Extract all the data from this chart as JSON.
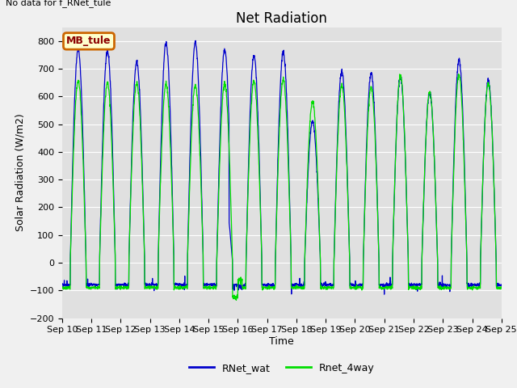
{
  "title": "Net Radiation",
  "ylabel": "Solar Radiation (W/m2)",
  "xlabel": "Time",
  "no_data_text": "No data for f_RNet_tule",
  "legend_box_text": "MB_tule",
  "legend_entries": [
    "RNet_wat",
    "Rnet_4way"
  ],
  "line_colors": [
    "#0000cc",
    "#00dd00"
  ],
  "ylim": [
    -200,
    850
  ],
  "yticks": [
    -200,
    -100,
    0,
    100,
    200,
    300,
    400,
    500,
    600,
    700,
    800
  ],
  "n_days": 15,
  "background_color": "#f0f0f0",
  "plot_bg_color": "#e0e0e0",
  "title_fontsize": 12,
  "axis_label_fontsize": 9,
  "tick_fontsize": 8,
  "blue_peaks": [
    770,
    765,
    725,
    790,
    795,
    770,
    748,
    760,
    510,
    690,
    685,
    670,
    614,
    730,
    655
  ],
  "green_peaks": [
    655,
    650,
    650,
    645,
    640,
    645,
    655,
    660,
    580,
    640,
    635,
    675,
    615,
    680,
    650
  ]
}
